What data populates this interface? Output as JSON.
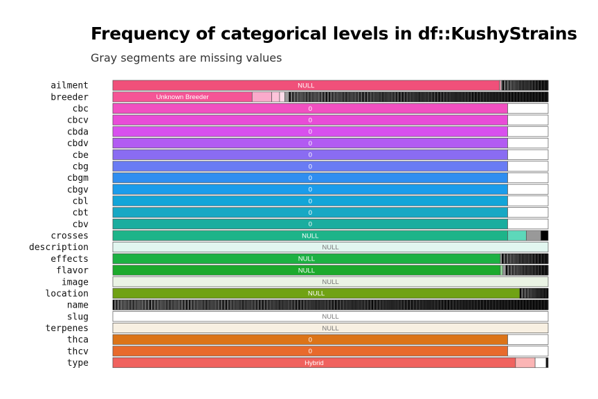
{
  "chart_data": {
    "type": "bar",
    "title": "Frequency of categorical levels in df::KushyStrains",
    "subtitle": "Gray segments are missing values",
    "xlabel": "",
    "ylabel": "",
    "x_range": [
      0,
      1
    ],
    "rows": [
      {
        "name": "ailment",
        "color": "#F0507A",
        "segments": [
          {
            "label": "NULL",
            "value": 0.888
          },
          {
            "value": 0.004
          },
          {
            "value": 0.003,
            "color": "#999999"
          },
          {
            "value": 0.105,
            "fill": "mixed"
          }
        ]
      },
      {
        "name": "breeder",
        "color": "#F55596",
        "segments": [
          {
            "label": "Unknown Breeder",
            "value": 0.32
          },
          {
            "value": 0.045
          },
          {
            "value": 0.018
          },
          {
            "value": 0.012
          },
          {
            "value": 0.01,
            "color": "#999999"
          },
          {
            "value": 0.595,
            "fill": "mixed"
          }
        ]
      },
      {
        "name": "cbc",
        "color": "#F150C1",
        "segments": [
          {
            "label": "0",
            "value": 0.907
          },
          {
            "value": 0.093,
            "color": "#ffffff"
          }
        ]
      },
      {
        "name": "cbcv",
        "color": "#E84CD7",
        "segments": [
          {
            "label": "0",
            "value": 0.907
          },
          {
            "value": 0.093,
            "color": "#ffffff"
          }
        ]
      },
      {
        "name": "cbda",
        "color": "#D850EE",
        "segments": [
          {
            "label": "0",
            "value": 0.907
          },
          {
            "value": 0.093,
            "color": "#ffffff"
          }
        ]
      },
      {
        "name": "cbdv",
        "color": "#B25BF2",
        "segments": [
          {
            "label": "0",
            "value": 0.907
          },
          {
            "value": 0.093,
            "color": "#ffffff"
          }
        ]
      },
      {
        "name": "cbe",
        "color": "#8A6CF2",
        "segments": [
          {
            "label": "0",
            "value": 0.907
          },
          {
            "value": 0.093,
            "color": "#ffffff"
          }
        ]
      },
      {
        "name": "cbg",
        "color": "#6A7CF4",
        "segments": [
          {
            "label": "0",
            "value": 0.907
          },
          {
            "value": 0.093,
            "color": "#ffffff"
          }
        ]
      },
      {
        "name": "cbgm",
        "color": "#2F8EF0",
        "segments": [
          {
            "label": "0",
            "value": 0.907
          },
          {
            "value": 0.093,
            "color": "#ffffff"
          }
        ]
      },
      {
        "name": "cbgv",
        "color": "#1A9CEB",
        "segments": [
          {
            "label": "0",
            "value": 0.907
          },
          {
            "value": 0.093,
            "color": "#ffffff"
          }
        ]
      },
      {
        "name": "cbl",
        "color": "#12A5D8",
        "segments": [
          {
            "label": "0",
            "value": 0.907
          },
          {
            "value": 0.093,
            "color": "#ffffff"
          }
        ]
      },
      {
        "name": "cbt",
        "color": "#18A8C4",
        "segments": [
          {
            "label": "0",
            "value": 0.907
          },
          {
            "value": 0.093,
            "color": "#ffffff"
          }
        ]
      },
      {
        "name": "cbv",
        "color": "#1AAD9F",
        "segments": [
          {
            "label": "0",
            "value": 0.907
          },
          {
            "value": 0.093,
            "color": "#ffffff"
          }
        ]
      },
      {
        "name": "crosses",
        "color": "#1DB489",
        "segments": [
          {
            "label": "NULL",
            "value": 0.907
          },
          {
            "value": 0.043,
            "color": "#5DD8BA"
          },
          {
            "value": 0.033,
            "color": "#999999"
          },
          {
            "value": 0.017,
            "color": "#000000"
          }
        ]
      },
      {
        "name": "description",
        "color": "#E2F6F0",
        "segments": [
          {
            "label": "NULL",
            "value": 1.0
          }
        ]
      },
      {
        "name": "effects",
        "color": "#1CB143",
        "segments": [
          {
            "label": "NULL",
            "value": 0.89
          },
          {
            "value": 0.004,
            "color": "#999999"
          },
          {
            "value": 0.106,
            "fill": "mixed"
          }
        ]
      },
      {
        "name": "flavor",
        "color": "#1CAA2C",
        "segments": [
          {
            "label": "NULL",
            "value": 0.89
          },
          {
            "value": 0.006
          },
          {
            "value": 0.007,
            "color": "#999999"
          },
          {
            "value": 0.097,
            "fill": "mixed"
          }
        ]
      },
      {
        "name": "image",
        "color": "#EAF3E4",
        "segments": [
          {
            "label": "NULL",
            "value": 1.0
          }
        ]
      },
      {
        "name": "location",
        "color": "#70A214",
        "segments": [
          {
            "label": "NULL",
            "value": 0.935
          },
          {
            "value": 0.065,
            "fill": "mixed"
          }
        ]
      },
      {
        "name": "name",
        "color": "#000000",
        "segments": [
          {
            "value": 1.0,
            "fill": "mixed"
          }
        ]
      },
      {
        "name": "slug",
        "color": "#ffffff",
        "segments": [
          {
            "label": "NULL",
            "value": 1.0
          }
        ]
      },
      {
        "name": "terpenes",
        "color": "#F8F0E2",
        "segments": [
          {
            "label": "NULL",
            "value": 1.0
          }
        ]
      },
      {
        "name": "thca",
        "color": "#DC7418",
        "segments": [
          {
            "label": "0",
            "value": 0.907
          },
          {
            "value": 0.093,
            "color": "#ffffff"
          }
        ]
      },
      {
        "name": "thcv",
        "color": "#E86A2C",
        "segments": [
          {
            "label": "0",
            "value": 0.907
          },
          {
            "value": 0.093,
            "color": "#ffffff"
          }
        ]
      },
      {
        "name": "type",
        "color": "#F0625E",
        "segments": [
          {
            "label": "Hybrid",
            "value": 0.925
          },
          {
            "value": 0.045,
            "color": "#FBB5B5"
          },
          {
            "value": 0.025,
            "color": "#ffffff"
          },
          {
            "value": 0.005,
            "color": "#111111"
          }
        ]
      }
    ]
  }
}
